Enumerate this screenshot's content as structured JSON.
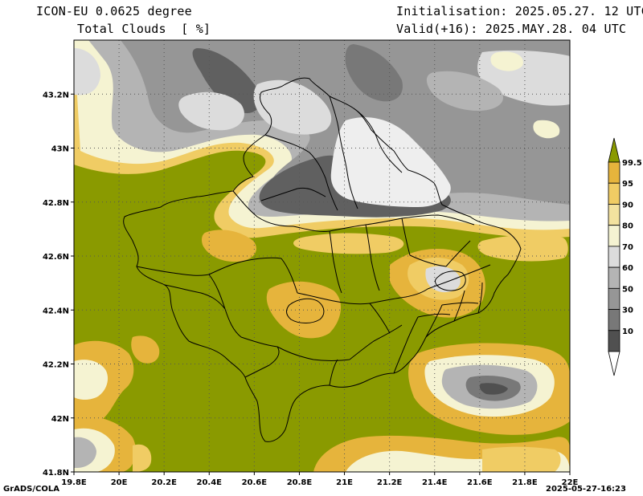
{
  "header": {
    "model": "ICON-EU 0.0625 degree",
    "field": "Total Clouds  [ %]",
    "init": "Initialisation: 2025.05.27. 12 UTC",
    "valid": "Valid(+16): 2025.MAY.28. 04 UTC"
  },
  "footer": {
    "credit": "GrADS/COLA",
    "timestamp": "2025-05-27-16:23"
  },
  "axes": {
    "lon_labels": [
      "19.8E",
      "20E",
      "20.2E",
      "20.4E",
      "20.6E",
      "20.8E",
      "21E",
      "21.2E",
      "21.4E",
      "21.6E",
      "21.8E",
      "22E"
    ],
    "lon_values": [
      19.8,
      20.0,
      20.2,
      20.4,
      20.6,
      20.8,
      21.0,
      21.2,
      21.4,
      21.6,
      21.8,
      22.0
    ],
    "lat_labels": [
      "41.8N",
      "42N",
      "42.2N",
      "42.4N",
      "42.6N",
      "42.8N",
      "43N",
      "43.2N"
    ],
    "lat_values": [
      41.8,
      42.0,
      42.2,
      42.4,
      42.6,
      42.8,
      43.0,
      43.2
    ],
    "lon_range": [
      19.8,
      22.0
    ],
    "lat_range": [
      41.8,
      43.4
    ],
    "grid": true
  },
  "colorbar": {
    "labels": [
      "99.5",
      "95",
      "90",
      "80",
      "70",
      "60",
      "50",
      "30",
      "10"
    ],
    "colors": [
      "#8a9a00",
      "#e6b43c",
      "#f0cc64",
      "#f3e29f",
      "#f5f3d2",
      "#dcdcdc",
      "#b4b4b4",
      "#969696",
      "#787878",
      "#505050",
      "#ffffff"
    ],
    "title": "Total Clouds [%]"
  },
  "colors": {
    "olive": "#8a9a00",
    "orange": "#e6b43c",
    "gold": "#f0cc64",
    "cream": "#f5f3d2",
    "light_gray": "#dcdcdc",
    "mid_gray": "#a0a0a0",
    "dark_gray": "#606060"
  }
}
